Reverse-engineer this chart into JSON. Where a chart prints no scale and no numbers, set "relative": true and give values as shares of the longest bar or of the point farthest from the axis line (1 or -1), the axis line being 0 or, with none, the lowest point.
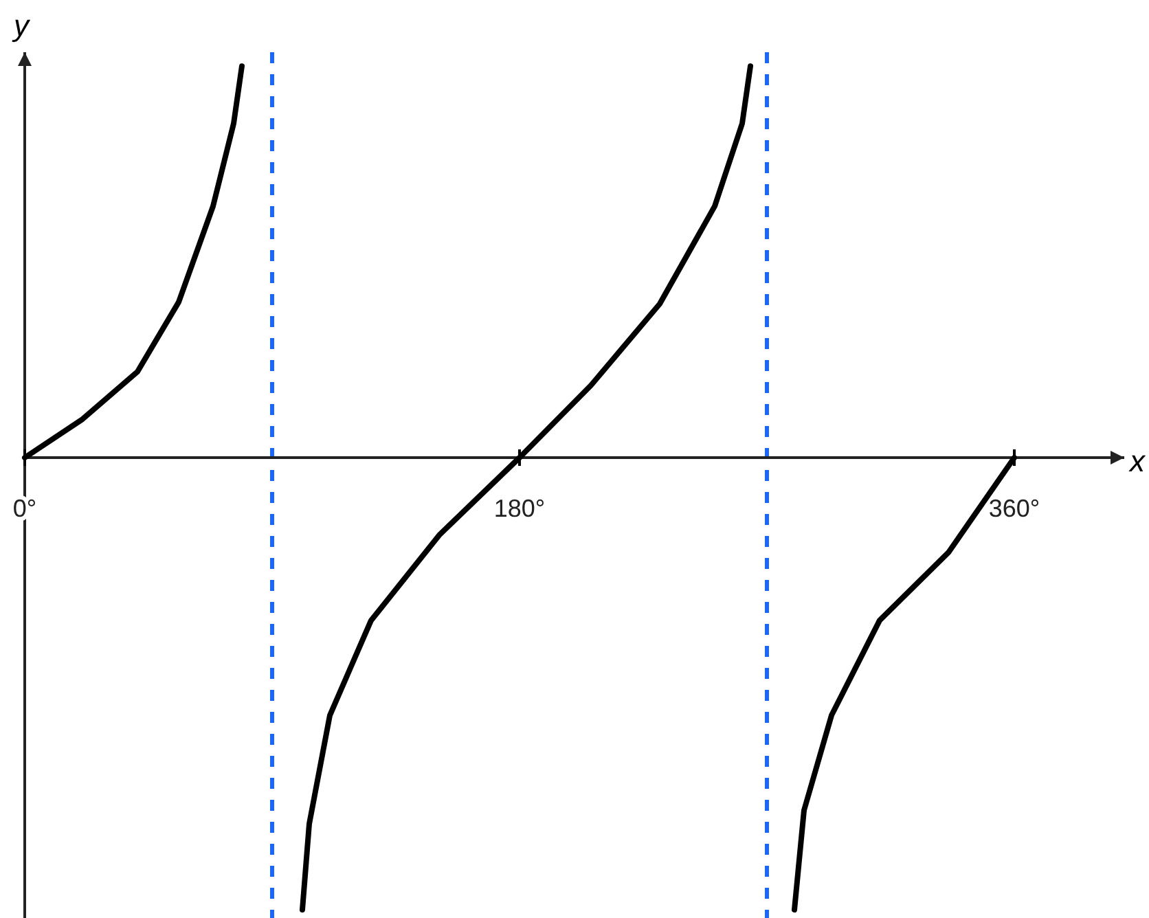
{
  "chart_data": {
    "type": "line",
    "xlabel": "x",
    "ylabel": "y",
    "relative": true,
    "tick_labels": "x",
    "line_style": "solid",
    "xlim": [
      0,
      400
    ],
    "xticks": [
      {
        "value": 0,
        "label": "0°"
      },
      {
        "value": 180,
        "label": "180°"
      },
      {
        "value": 360,
        "label": "360°"
      }
    ],
    "x": [
      0,
      21,
      41,
      56,
      68.5,
      76,
      79,
      90,
      101,
      103.5,
      111,
      126,
      151,
      180,
      206,
      231,
      251,
      261,
      264,
      270,
      280,
      283.5,
      293.5,
      311,
      336,
      360
    ],
    "series": [
      {
        "color": "#000000",
        "values": [
          0,
          0.085,
          0.19,
          0.344,
          0.556,
          0.739,
          0.866,
          null,
          -1,
          -0.81,
          -0.57,
          -0.36,
          -0.17,
          0,
          0.16,
          0.34,
          0.556,
          0.739,
          0.866,
          null,
          -1,
          -0.78,
          -0.57,
          -0.36,
          -0.21,
          0
        ]
      }
    ],
    "ref_lines": [
      {
        "axis": "x",
        "value": 90,
        "color": "#1a66ff",
        "line_style": "dashed"
      },
      {
        "axis": "x",
        "value": 270,
        "color": "#1a66ff",
        "line_style": "dashed"
      }
    ]
  }
}
